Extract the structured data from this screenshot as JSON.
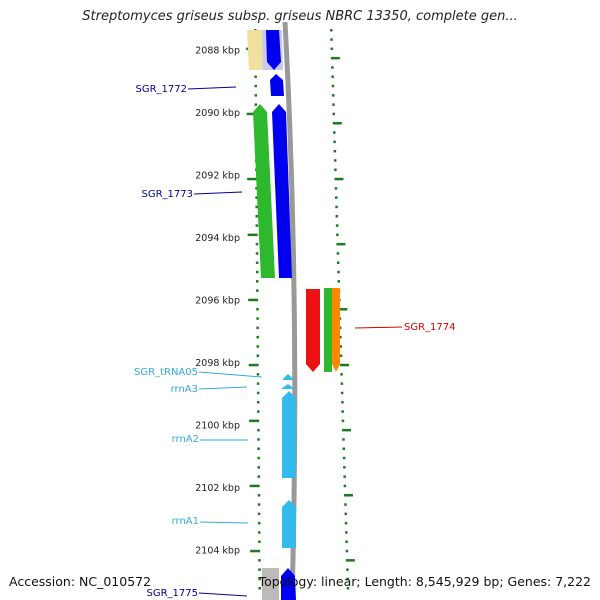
{
  "title": "Streptomyces griseus subsp. griseus NBRC 13350, complete gen...",
  "accession_text": "Accession: NC_010572",
  "summary_text": "Topology: linear; Length: 8,545,929 bp; Genes: 7,222",
  "colors": {
    "tick": "#1f7a1f",
    "backbone": "#999999",
    "cds_blue": "#0000ee",
    "gene_green": "#2db82d",
    "cds_red": "#ee1111",
    "gene_orange": "#ff8800",
    "rna_cyan": "#33bbee",
    "label_blue": "#000099",
    "label_red": "#dd0000",
    "label_cyan": "#33aadd",
    "yellow": "#f0e0a0",
    "gray": "#bbbbbb"
  },
  "axis": {
    "unit": "kbp",
    "ticks": [
      2088,
      2090,
      2092,
      2094,
      2096,
      2098,
      2100,
      2102,
      2104
    ]
  },
  "features": [
    {
      "name": "SGR_1772",
      "color": "label_blue"
    },
    {
      "name": "SGR_1773",
      "color": "label_blue"
    },
    {
      "name": "SGR_1774",
      "color": "label_red"
    },
    {
      "name": "SGR_tRNA05",
      "color": "label_cyan"
    },
    {
      "name": "rrnA3",
      "color": "label_cyan"
    },
    {
      "name": "rrnA2",
      "color": "label_cyan"
    },
    {
      "name": "rrnA1",
      "color": "label_cyan"
    },
    {
      "name": "SGR_1775",
      "color": "label_blue"
    }
  ]
}
